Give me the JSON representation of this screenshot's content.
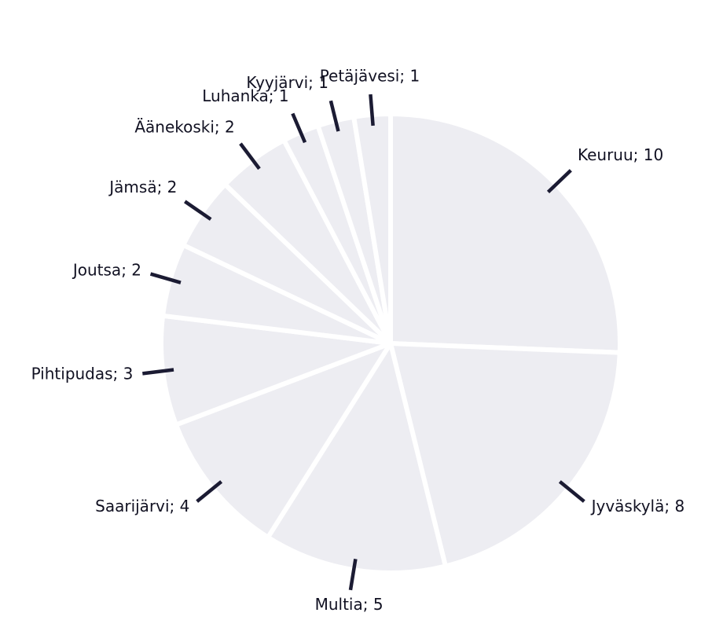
{
  "chart_data": {
    "type": "pie",
    "values": [
      10,
      8,
      5,
      4,
      3,
      2,
      2,
      2,
      1,
      1,
      1
    ],
    "value_labels": [
      "Keuruu; 10",
      "Jyväskylä; 8",
      "Multia; 5",
      "Saarijärvi; 4",
      "Pihtipudas; 3",
      "Joutsa; 2",
      "Jämsä; 2",
      "Äänekoski; 2",
      "Luhanka; 1",
      "Kyyjärvi; 1",
      "Petäjävesi; 1"
    ],
    "color": "#ededf2",
    "leader_color": "#1b1b33"
  }
}
